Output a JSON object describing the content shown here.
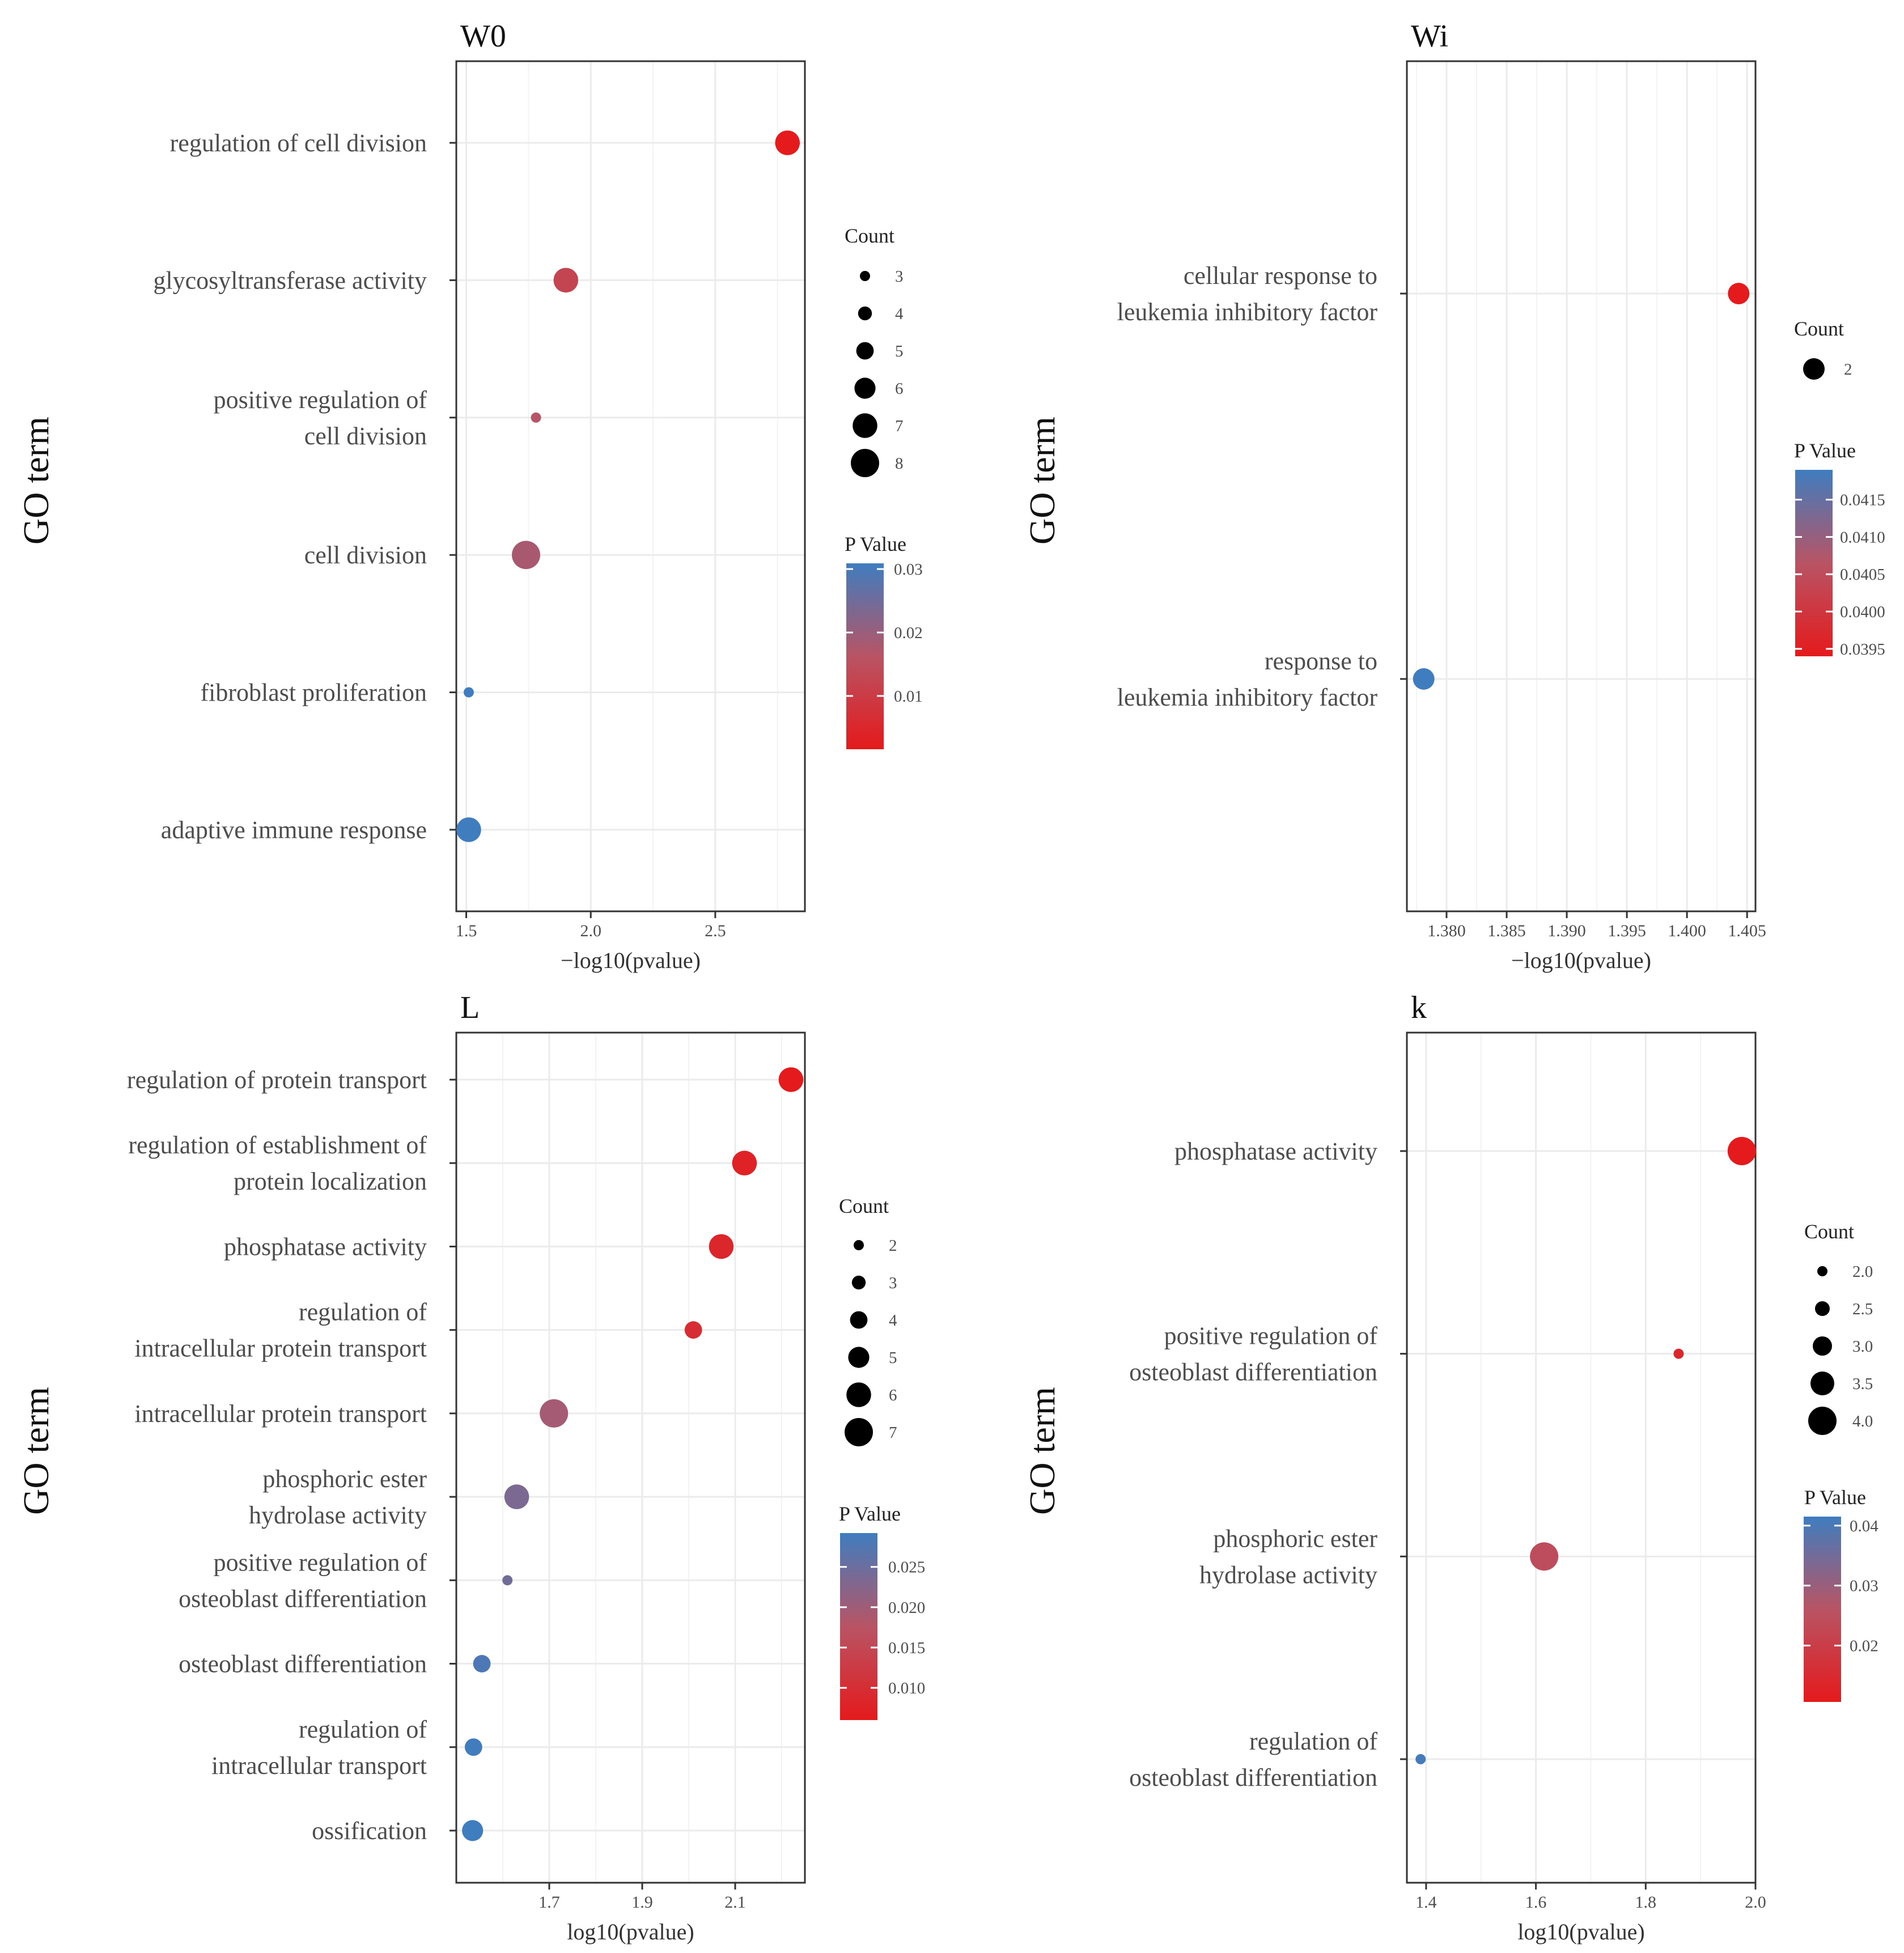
{
  "figure": {
    "colors": {
      "low": "#E41A1C",
      "mid": "#B85464",
      "high": "#3F7DBF"
    }
  },
  "chart_data": [
    {
      "id": "W0",
      "type": "scatter",
      "title": "W0",
      "xlabel": "−log10(pvalue)",
      "ylabel": "GO term",
      "xlim": [
        1.46,
        2.86
      ],
      "xticks": [
        1.5,
        2.0,
        2.5
      ],
      "xtick_labels": [
        "1.5",
        "2.0",
        "2.5"
      ],
      "terms": [
        {
          "label": [
            "regulation of cell division"
          ],
          "x": 2.79,
          "count": 7,
          "p": 0.0016
        },
        {
          "label": [
            "glycosyltransferase activity"
          ],
          "x": 1.9,
          "count": 7,
          "p": 0.0125
        },
        {
          "label": [
            "positive regulation of",
            "cell division"
          ],
          "x": 1.78,
          "count": 3,
          "p": 0.0166
        },
        {
          "label": [
            "cell division"
          ],
          "x": 1.74,
          "count": 8,
          "p": 0.0182
        },
        {
          "label": [
            "fibroblast proliferation"
          ],
          "x": 1.51,
          "count": 3,
          "p": 0.0309
        },
        {
          "label": [
            "adaptive immune response"
          ],
          "x": 1.51,
          "count": 7,
          "p": 0.0309
        }
      ],
      "count_legend": {
        "title": "Count",
        "values": [
          3,
          4,
          5,
          6,
          7,
          8
        ],
        "labels": [
          "3",
          "4",
          "5",
          "6",
          "7",
          "8"
        ]
      },
      "pvalue_legend": {
        "title": "P Value",
        "range": [
          0.0016,
          0.0309
        ],
        "ticks": [
          0.01,
          0.02,
          0.03
        ],
        "labels": [
          "0.01",
          "0.02",
          "0.03"
        ]
      }
    },
    {
      "id": "Wi",
      "type": "scatter",
      "title": "Wi",
      "xlabel": "−log10(pvalue)",
      "ylabel": "GO term",
      "xlim": [
        1.3767,
        1.4057
      ],
      "xticks": [
        1.38,
        1.385,
        1.39,
        1.395,
        1.4,
        1.405
      ],
      "xtick_labels": [
        "1.380",
        "1.385",
        "1.390",
        "1.395",
        "1.400",
        "1.405"
      ],
      "terms": [
        {
          "label": [
            "cellular response to",
            "leukemia inhibitory factor"
          ],
          "x": 1.4043,
          "count": 2,
          "p": 0.0394
        },
        {
          "label": [
            "response to",
            "leukemia inhibitory factor"
          ],
          "x": 1.3781,
          "count": 2,
          "p": 0.0419
        }
      ],
      "count_legend": {
        "title": "Count",
        "values": [
          2
        ],
        "labels": [
          "2"
        ]
      },
      "pvalue_legend": {
        "title": "P Value",
        "range": [
          0.0394,
          0.0419
        ],
        "ticks": [
          0.0395,
          0.04,
          0.0405,
          0.041,
          0.0415
        ],
        "labels": [
          "0.0395",
          "0.0400",
          "0.0405",
          "0.0410",
          "0.0415"
        ]
      }
    },
    {
      "id": "L",
      "type": "scatter",
      "title": "L",
      "xlabel": "log10(pvalue)",
      "ylabel": "GO term",
      "xlim": [
        1.5,
        2.25
      ],
      "xticks": [
        1.7,
        1.9,
        2.1
      ],
      "xtick_labels": [
        "1.7",
        "1.9",
        "2.1"
      ],
      "terms": [
        {
          "label": [
            "regulation of protein transport"
          ],
          "x": 2.22,
          "count": 6,
          "p": 0.006
        },
        {
          "label": [
            "regulation of establishment of",
            "protein localization"
          ],
          "x": 2.12,
          "count": 6,
          "p": 0.0076
        },
        {
          "label": [
            "phosphatase activity"
          ],
          "x": 2.07,
          "count": 6,
          "p": 0.0085
        },
        {
          "label": [
            "regulation of",
            "intracellular protein transport"
          ],
          "x": 2.01,
          "count": 4,
          "p": 0.0098
        },
        {
          "label": [
            "intracellular protein transport"
          ],
          "x": 1.71,
          "count": 7,
          "p": 0.0195
        },
        {
          "label": [
            "phosphoric ester",
            "hydrolase activity"
          ],
          "x": 1.63,
          "count": 6,
          "p": 0.0234
        },
        {
          "label": [
            "positive regulation of",
            "osteoblast differentiation"
          ],
          "x": 1.61,
          "count": 2,
          "p": 0.0245
        },
        {
          "label": [
            "osteoblast differentiation"
          ],
          "x": 1.555,
          "count": 4,
          "p": 0.0279
        },
        {
          "label": [
            "regulation of",
            "intracellular transport"
          ],
          "x": 1.537,
          "count": 4,
          "p": 0.029
        },
        {
          "label": [
            "ossification"
          ],
          "x": 1.535,
          "count": 5,
          "p": 0.0292
        }
      ],
      "count_legend": {
        "title": "Count",
        "values": [
          2,
          3,
          4,
          5,
          6,
          7
        ],
        "labels": [
          "2",
          "3",
          "4",
          "5",
          "6",
          "7"
        ]
      },
      "pvalue_legend": {
        "title": "P Value",
        "range": [
          0.006,
          0.0292
        ],
        "ticks": [
          0.01,
          0.015,
          0.02,
          0.025
        ],
        "labels": [
          "0.010",
          "0.015",
          "0.020",
          "0.025"
        ]
      }
    },
    {
      "id": "k",
      "type": "scatter",
      "title": "k",
      "xlabel": "log10(pvalue)",
      "ylabel": "GO term",
      "xlim": [
        1.365,
        2.0
      ],
      "xticks": [
        1.4,
        1.6,
        1.8,
        2.0
      ],
      "xtick_labels": [
        "1.4",
        "1.6",
        "1.8",
        "2.0"
      ],
      "terms": [
        {
          "label": [
            "phosphatase activity"
          ],
          "x": 1.975,
          "count": 4,
          "p": 0.0106
        },
        {
          "label": [
            "positive regulation of",
            "osteoblast differentiation"
          ],
          "x": 1.86,
          "count": 2,
          "p": 0.0138
        },
        {
          "label": [
            "phosphoric ester",
            "hydrolase activity"
          ],
          "x": 1.615,
          "count": 4,
          "p": 0.0243
        },
        {
          "label": [
            "regulation of",
            "osteoblast differentiation"
          ],
          "x": 1.39,
          "count": 2,
          "p": 0.0407
        }
      ],
      "count_legend": {
        "title": "Count",
        "values": [
          2.0,
          2.5,
          3.0,
          3.5,
          4.0
        ],
        "labels": [
          "2.0",
          "2.5",
          "3.0",
          "3.5",
          "4.0"
        ]
      },
      "pvalue_legend": {
        "title": "P Value",
        "range": [
          0.0106,
          0.0415
        ],
        "ticks": [
          0.02,
          0.03,
          0.04
        ],
        "labels": [
          "0.02",
          "0.03",
          "0.04"
        ]
      }
    }
  ]
}
